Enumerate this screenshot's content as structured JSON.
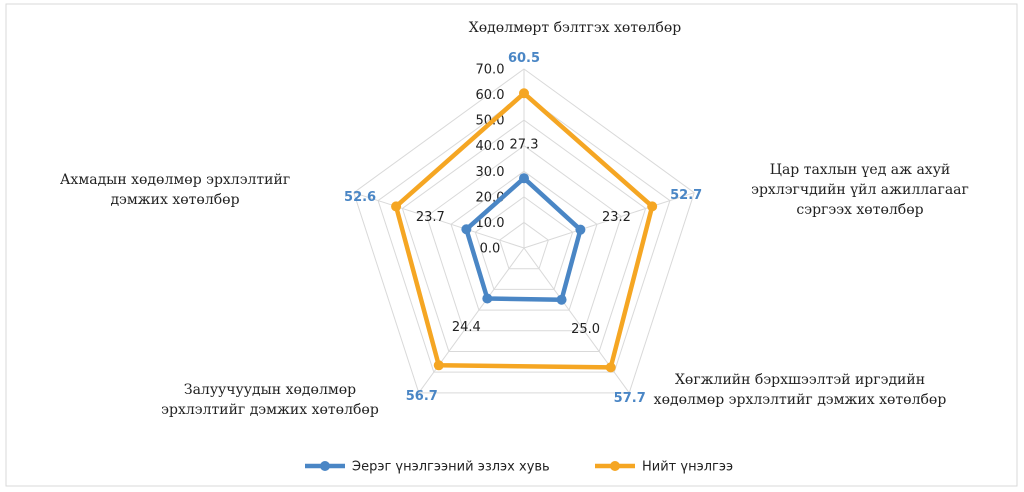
{
  "chart_data": {
    "type": "radar",
    "categories": [
      "Хөдөлмөрт бэлтгэх хөтөлбөр",
      "Цар тахлын үед аж ахуй эрхлэгчдийн үйл ажиллагааг сэргээх хөтөлбөр",
      "Хөгжлийн бэрхшээлтэй иргэдийн хөдөлмөр эрхлэлтийг дэмжих хөтөлбөр",
      "Залуучуудын хөдөлмөр эрхлэлтийг дэмжих хөтөлбөр",
      "Ахмадын хөдөлмөр эрхлэлтийг дэмжих хөтөлбөр"
    ],
    "series": [
      {
        "name": "Эерэг үнэлгээний эзлэх хувь",
        "color": "#4a86c5",
        "values": [
          27.3,
          23.2,
          25.0,
          24.4,
          23.7
        ],
        "value_labels": [
          "27.3",
          "23.2",
          "25.0",
          "24.4",
          "23.7"
        ]
      },
      {
        "name": "Нийт үнэлгээ",
        "color": "#f5a623",
        "values": [
          60.5,
          52.7,
          57.7,
          56.7,
          52.6
        ]
      }
    ],
    "rlim": [
      0,
      70
    ],
    "rticks": [
      {
        "value": 0,
        "label": "0.0"
      },
      {
        "value": 10,
        "label": "10.0"
      },
      {
        "value": 20,
        "label": "20.0"
      },
      {
        "value": 30,
        "label": "30.0"
      },
      {
        "value": 40,
        "label": "40.0"
      },
      {
        "value": 50,
        "label": "50.0"
      },
      {
        "value": 60,
        "label": "60.0"
      },
      {
        "value": 70,
        "label": "70.0"
      }
    ],
    "grid": true,
    "legend": "bottom"
  }
}
